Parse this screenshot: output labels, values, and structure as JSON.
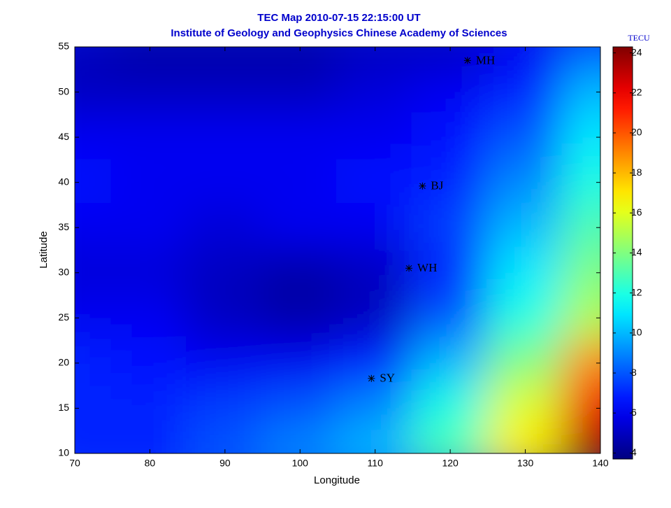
{
  "chart_data": {
    "type": "heatmap",
    "title": "TEC Map 2010-07-15 22:15:00 UT",
    "subtitle": "Institute of Geology and Geophysics Chinese Academy of Sciences",
    "x_label": "Longitude",
    "y_label": "Latitude",
    "xlim": [
      70,
      140
    ],
    "xticks": [
      70,
      80,
      90,
      100,
      110,
      120,
      130,
      140
    ],
    "ylim": [
      10,
      55
    ],
    "yticks": [
      10,
      15,
      20,
      25,
      30,
      35,
      40,
      45,
      50,
      55
    ],
    "colorbar": {
      "label": "TECU",
      "lim": [
        3.7,
        24.3
      ],
      "ticks": [
        4,
        6,
        8,
        10,
        12,
        14,
        16,
        18,
        20,
        22,
        24
      ],
      "colormap": "jet"
    },
    "tec": {
      "lon": [
        70,
        80,
        90,
        100,
        110,
        120,
        130,
        140
      ],
      "lat": [
        55,
        50,
        45,
        40,
        35,
        30,
        25,
        20,
        15,
        10
      ],
      "values": [
        [
          5,
          4.5,
          4.5,
          4.5,
          5,
          5,
          6,
          8
        ],
        [
          5,
          5,
          5,
          5,
          5.5,
          6,
          7,
          10
        ],
        [
          6,
          6,
          6,
          6,
          6,
          6.5,
          8,
          11
        ],
        [
          6.5,
          6,
          6,
          6,
          6.5,
          7,
          9,
          12
        ],
        [
          6,
          6,
          5.5,
          6,
          6,
          7.5,
          10,
          13
        ],
        [
          5.5,
          5.5,
          5,
          4.5,
          5,
          7,
          11,
          14
        ],
        [
          6,
          6,
          5,
          4.5,
          5,
          8,
          12,
          15
        ],
        [
          7,
          6.5,
          6,
          6,
          7,
          10,
          14,
          19
        ],
        [
          7,
          7,
          7.5,
          8,
          9,
          12,
          16,
          22
        ],
        [
          7,
          7,
          8,
          9,
          10,
          13,
          17,
          24
        ]
      ]
    },
    "stations": {
      "names": [
        "MH",
        "BJ",
        "WH",
        "SY"
      ],
      "x": [
        122.3,
        116.3,
        114.5,
        109.5
      ],
      "y": [
        53.5,
        39.6,
        30.5,
        18.3
      ]
    }
  }
}
